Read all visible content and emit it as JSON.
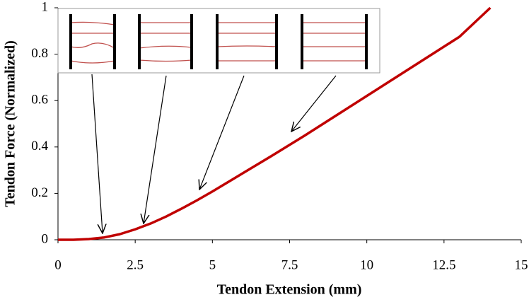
{
  "chart_data": {
    "type": "line",
    "x_label": "Tendon Extension (mm)",
    "y_label": "Tendon Force (Normalized)",
    "x": [
      0,
      0.5,
      1,
      1.5,
      2,
      2.5,
      3,
      3.5,
      4,
      4.5,
      5,
      6,
      7,
      8,
      9,
      10,
      11,
      12,
      13,
      14
    ],
    "series": [
      {
        "color": "#c00000",
        "values": [
          0,
          0.0,
          0.003,
          0.01,
          0.024,
          0.045,
          0.07,
          0.1,
          0.134,
          0.17,
          0.208,
          0.288,
          0.368,
          0.45,
          0.535,
          0.62,
          0.705,
          0.79,
          0.875,
          1.0
        ]
      }
    ],
    "xlim": [
      0,
      15
    ],
    "xticks": [
      0,
      2.5,
      5,
      7.5,
      10,
      12.5,
      15
    ],
    "ylim": [
      0,
      1
    ],
    "yticks": [
      0,
      0.2,
      0.4,
      0.6,
      0.8,
      1
    ],
    "grid": false
  }
}
